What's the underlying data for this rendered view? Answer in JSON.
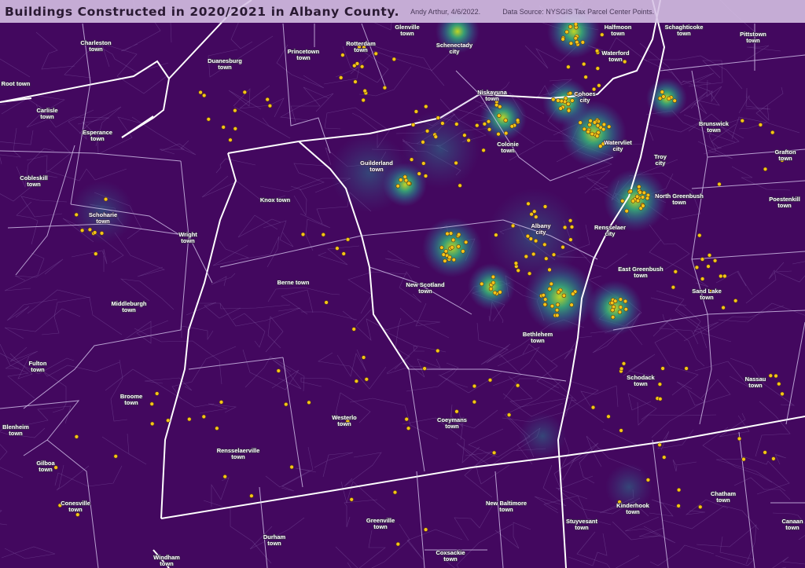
{
  "header": {
    "title": "Buildings Constructed in 2020/2021 in Albany County.",
    "credit": "Andy Arthur, 4/6/2022.",
    "source": "Data Source: NYSGIS Tax Parcel Center Points."
  },
  "colors": {
    "background": "#43085f",
    "heat_low": "#3b5aa0",
    "heat_mid": "#21908d",
    "heat_high": "#b5de2b",
    "point": "#f5c518",
    "boundary": "#ffffff"
  },
  "towns": [
    "Charleston town",
    "Root town",
    "Duanesburg town",
    "Princetown town",
    "Rotterdam town",
    "Glenville town",
    "Schenectady city",
    "Niskayuna town",
    "Halfmoon town",
    "Schaghticoke town",
    "Pittstown town",
    "Waterford town",
    "Cohoes city",
    "Carlisle town",
    "Esperance town",
    "Brunswick town",
    "Colonie town",
    "Watervliet city",
    "Troy city",
    "Grafton town",
    "Guilderland town",
    "Cobleskill town",
    "Knox town",
    "North Greenbush town",
    "Poestenkill town",
    "Schoharie town",
    "Wright town",
    "Albany city",
    "Rensselaer city",
    "East Greenbush town",
    "New Scotland town",
    "Middleburgh town",
    "Berne town",
    "Sand Lake town",
    "Bethlehem town",
    "Fulton town",
    "Schodack town",
    "Nassau town",
    "Broome town",
    "Westerlo town",
    "Coeymans town",
    "Blenheim town",
    "Rensselaerville town",
    "Gilboa town",
    "New Baltimore town",
    "Kinderhook town",
    "Chatham town",
    "Conesville town",
    "Greenville town",
    "Stuyvesant town",
    "Canaan town",
    "Durham town",
    "Coxsackie town",
    "Windham town"
  ],
  "legend": {
    "layer_points": "building-point-icon",
    "layer_heat": "density-heatmap"
  }
}
